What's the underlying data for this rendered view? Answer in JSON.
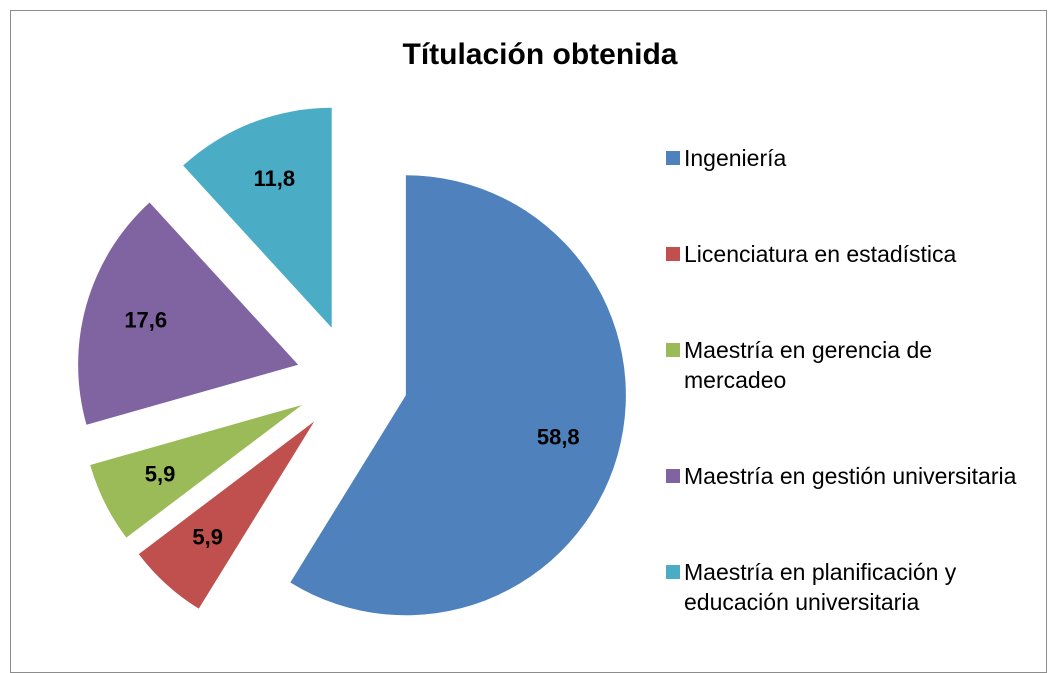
{
  "chart_data": {
    "type": "pie",
    "title": "Títulación obtenida",
    "categories": [
      "Ingeniería",
      "Licenciatura en estadística",
      "Maestría en gerencia de mercadeo",
      "Maestría en gestión universitaria",
      "Maestría en planificación y educación universitaria"
    ],
    "values": [
      58.8,
      5.9,
      5.9,
      17.6,
      11.8
    ],
    "value_labels": [
      "58,8",
      "5,9",
      "5,9",
      "17,6",
      "11,8"
    ],
    "colors": [
      "#4f81bd",
      "#c0504d",
      "#9bbb59",
      "#8064a2",
      "#4bacc6"
    ],
    "legend": "right"
  }
}
